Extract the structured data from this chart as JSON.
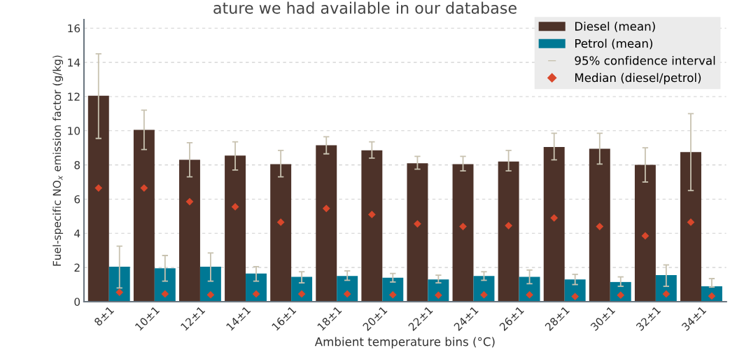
{
  "chart_data": {
    "type": "bar",
    "title": "ature we had available in our database",
    "xlabel": "Ambient temperature bins (°C)",
    "ylabel": "Fuel-specific NO$_{x}$ emission factor (g/kg)",
    "categories": [
      "8±1",
      "10±1",
      "12±1",
      "14±1",
      "16±1",
      "18±1",
      "20±1",
      "22±1",
      "24±1",
      "26±1",
      "28±1",
      "30±1",
      "32±1",
      "34±1"
    ],
    "series": [
      {
        "name": "Diesel (mean)",
        "color": "#4d3229",
        "values": [
          12.05,
          10.05,
          8.3,
          8.55,
          8.05,
          9.15,
          8.85,
          8.1,
          8.05,
          8.2,
          9.05,
          8.95,
          8.0,
          8.75
        ],
        "errors": [
          [
            9.55,
            14.5
          ],
          [
            8.9,
            11.2
          ],
          [
            7.3,
            9.3
          ],
          [
            7.7,
            9.35
          ],
          [
            7.3,
            8.85
          ],
          [
            8.65,
            9.65
          ],
          [
            8.4,
            9.35
          ],
          [
            7.75,
            8.5
          ],
          [
            7.65,
            8.5
          ],
          [
            7.65,
            8.85
          ],
          [
            8.3,
            9.85
          ],
          [
            8.05,
            9.85
          ],
          [
            7.0,
            9.0
          ],
          [
            6.5,
            11.0
          ]
        ]
      },
      {
        "name": "Petrol (mean)",
        "color": "#007894",
        "values": [
          2.05,
          1.95,
          2.05,
          1.65,
          1.45,
          1.5,
          1.4,
          1.3,
          1.5,
          1.45,
          1.3,
          1.15,
          1.55,
          0.9
        ],
        "errors": [
          [
            0.8,
            3.25
          ],
          [
            1.2,
            2.7
          ],
          [
            1.2,
            2.85
          ],
          [
            1.2,
            2.05
          ],
          [
            1.1,
            1.75
          ],
          [
            1.25,
            1.8
          ],
          [
            1.15,
            1.65
          ],
          [
            1.1,
            1.55
          ],
          [
            1.25,
            1.75
          ],
          [
            1.05,
            1.85
          ],
          [
            1.0,
            1.6
          ],
          [
            0.9,
            1.45
          ],
          [
            0.9,
            2.15
          ],
          [
            0.85,
            1.35
          ]
        ]
      },
      {
        "type": "scatter",
        "name": "Median (diesel/petrol)",
        "color": "#d9472b",
        "marker": "diamond",
        "values": [
          6.65,
          6.65,
          5.85,
          5.55,
          4.65,
          5.45,
          5.1,
          4.55,
          4.4,
          4.45,
          4.9,
          4.4,
          3.85,
          4.65
        ]
      },
      {
        "type": "scatter",
        "color": "#d9472b",
        "marker": "diamond",
        "values": [
          0.55,
          0.45,
          0.4,
          0.45,
          0.45,
          0.45,
          0.4,
          0.38,
          0.4,
          0.4,
          0.3,
          0.38,
          0.45,
          0.33
        ]
      }
    ],
    "annotations": [
      "95% confidence interval"
    ],
    "ylim": [
      0,
      16.5
    ],
    "yticks": [
      0,
      2,
      4,
      6,
      8,
      10,
      12,
      14,
      16
    ],
    "grid": "y",
    "legend": "top right"
  }
}
